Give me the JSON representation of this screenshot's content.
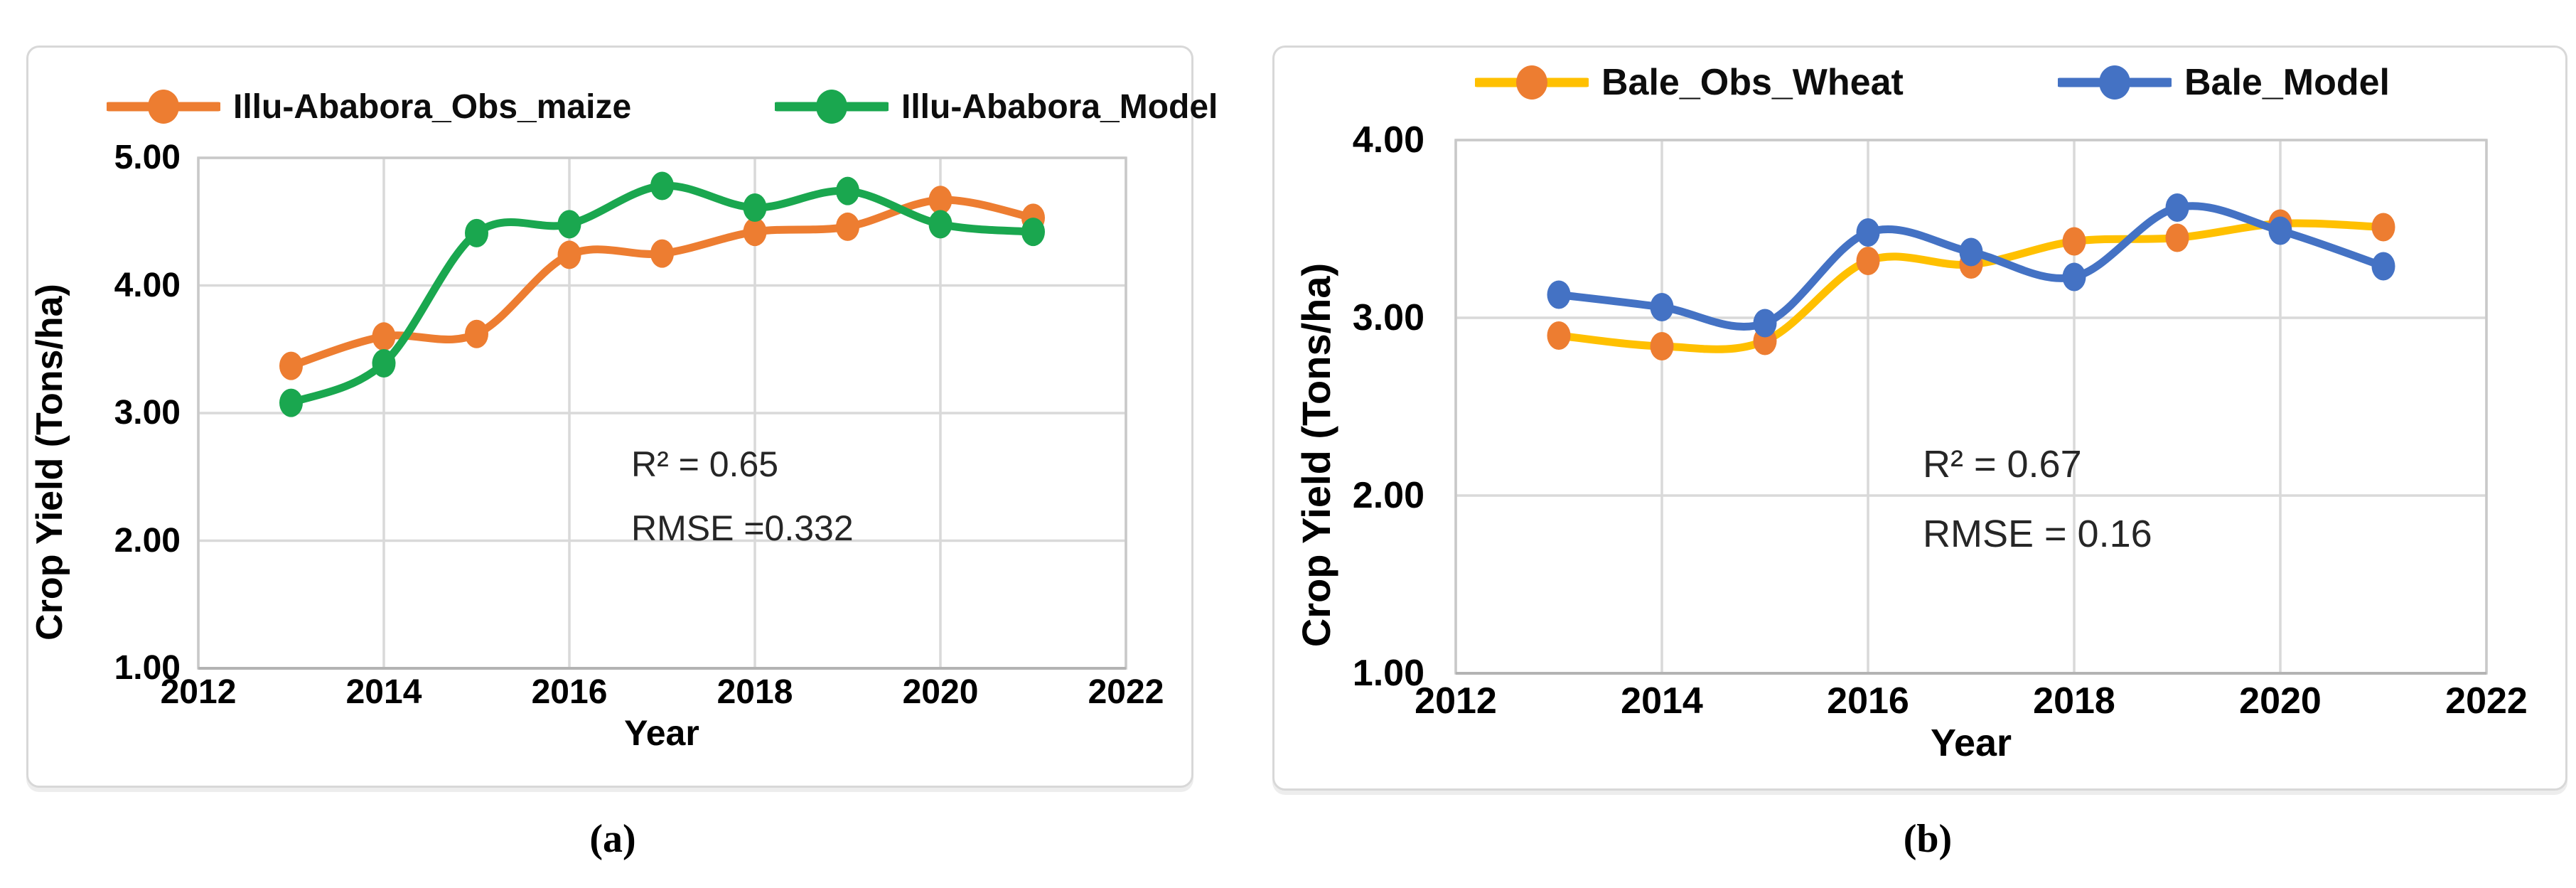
{
  "figure": {
    "caption_a": "(a)",
    "caption_b": "(b)"
  },
  "colors": {
    "orange": "#ED7D31",
    "green": "#1AA74F",
    "blue": "#4472C4",
    "yellow": "#FFC000",
    "gridline": "#D9D9D9",
    "plot_border": "#C9C9C9",
    "bottom_axis": "#B3B3B3",
    "panel_border": "#D8D8D8",
    "annotation_text": "#262626"
  },
  "chart_data": [
    {
      "id": "a",
      "type": "line",
      "title": "",
      "x": [
        2013,
        2014,
        2015,
        2016,
        2017,
        2018,
        2019,
        2020,
        2021
      ],
      "series": [
        {
          "name": "Illu-Ababora_Obs_maize",
          "line_color": "#ED7D31",
          "marker_color": "#ED7D31",
          "values": [
            3.37,
            3.6,
            3.62,
            4.24,
            4.25,
            4.42,
            4.46,
            4.67,
            4.53
          ]
        },
        {
          "name": "Illu-Ababora_Model",
          "line_color": "#1AA74F",
          "marker_color": "#1AA74F",
          "values": [
            3.08,
            3.39,
            4.41,
            4.48,
            4.78,
            4.61,
            4.74,
            4.48,
            4.42
          ]
        }
      ],
      "xlabel": "Year",
      "ylabel": "Crop Yield (Tons/ha)",
      "xlim": [
        2012,
        2022
      ],
      "ylim": [
        1.0,
        5.0
      ],
      "x_tick_labels": [
        "2012",
        "2014",
        "2016",
        "2018",
        "2020",
        "2022"
      ],
      "y_tick_labels": [
        "5.00",
        "4.00",
        "3.00",
        "2.00",
        "1.00"
      ],
      "grid": true,
      "smooth_lines": true,
      "legend_position": "top",
      "annotations": [
        "R² = 0.65",
        "RMSE =0.332"
      ]
    },
    {
      "id": "b",
      "type": "line",
      "title": "",
      "x": [
        2013,
        2014,
        2015,
        2016,
        2017,
        2018,
        2019,
        2020,
        2021
      ],
      "series": [
        {
          "name": "Bale_Obs_Wheat",
          "line_color": "#FFC000",
          "marker_color": "#ED7D31",
          "values": [
            2.9,
            2.84,
            2.87,
            3.32,
            3.3,
            3.43,
            3.45,
            3.53,
            3.51
          ]
        },
        {
          "name": "Bale_Model",
          "line_color": "#4472C4",
          "marker_color": "#4472C4",
          "values": [
            3.13,
            3.06,
            2.97,
            3.48,
            3.37,
            3.23,
            3.62,
            3.49,
            3.29
          ]
        }
      ],
      "xlabel": "Year",
      "ylabel": "Crop Yield (Tons/ha)",
      "xlim": [
        2012,
        2022
      ],
      "ylim": [
        1.0,
        4.0
      ],
      "x_tick_labels": [
        "2012",
        "2014",
        "2016",
        "2018",
        "2020",
        "2022"
      ],
      "y_tick_labels": [
        "4.00",
        "3.00",
        "2.00",
        "1.00"
      ],
      "grid": true,
      "smooth_lines": true,
      "legend_position": "top",
      "annotations": [
        "R² = 0.67",
        "RMSE = 0.16"
      ]
    }
  ]
}
